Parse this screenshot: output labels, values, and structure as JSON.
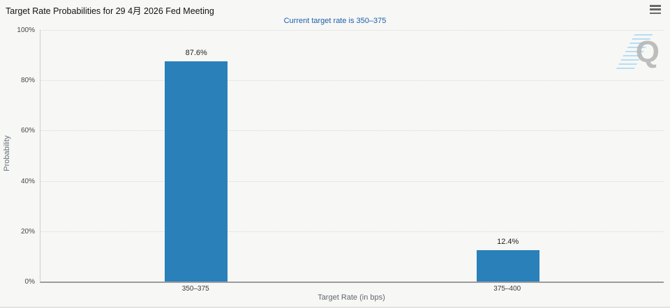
{
  "header": {
    "title": "Target Rate Probabilities for 29 4月 2026 Fed Meeting",
    "menu_icon": "hamburger-context-menu"
  },
  "chart_data": {
    "type": "bar",
    "title": "Target Rate Probabilities for 29 4月 2026 Fed Meeting",
    "subtitle": "Current target rate is 350–375",
    "categories": [
      "350–375",
      "375–400"
    ],
    "values": [
      87.6,
      12.4
    ],
    "value_labels": [
      "87.6%",
      "12.4%"
    ],
    "xlabel": "Target Rate (in bps)",
    "ylabel": "Probability",
    "ylim": [
      0,
      100
    ],
    "ytick_interval": 20,
    "ytick_labels": [
      "0%",
      "20%",
      "40%",
      "60%",
      "80%",
      "100%"
    ],
    "grid": "horizontal-dotted",
    "legend": "none",
    "bar_color": "#2a80b9"
  },
  "colors": {
    "background": "#f7f7f6",
    "bar": "#2a80b9",
    "subtitle_text": "#1b5fa8",
    "gridline": "#d8d8d8",
    "axis_line": "#9c9c9c",
    "watermark_letter": "#b4b4b4",
    "watermark_stripes": "#78c6ee"
  },
  "watermark": {
    "letter": "Q"
  }
}
